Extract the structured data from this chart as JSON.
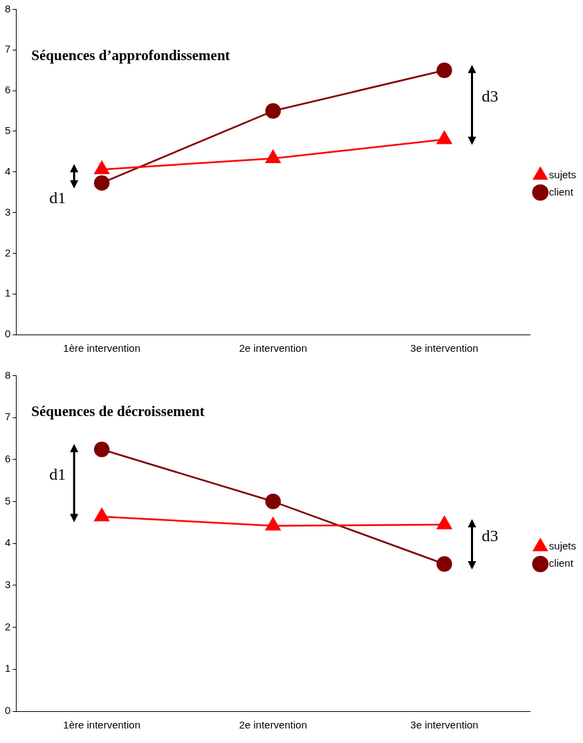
{
  "chart_data": [
    {
      "type": "line",
      "title": "Séquences d’approfondissement",
      "categories": [
        "1ère intervention",
        "2e intervention",
        "3e intervention"
      ],
      "series": [
        {
          "name": "sujets",
          "color": "#ff0000",
          "marker": "triangle",
          "values": [
            4.06,
            4.33,
            4.8
          ]
        },
        {
          "name": "client",
          "color": "#800000",
          "marker": "circle",
          "values": [
            3.73,
            5.5,
            6.5
          ]
        }
      ],
      "ylim": [
        0,
        8
      ],
      "yticks": [
        0,
        1,
        2,
        3,
        4,
        5,
        6,
        7,
        8
      ],
      "grid": false,
      "legend": "right",
      "annotations": [
        "d1",
        "d3"
      ]
    },
    {
      "type": "line",
      "title": "Séquences de décroissement",
      "categories": [
        "1ère intervention",
        "2e intervention",
        "3e intervention"
      ],
      "series": [
        {
          "name": "sujets",
          "color": "#ff0000",
          "marker": "triangle",
          "values": [
            4.64,
            4.42,
            4.45
          ]
        },
        {
          "name": "client",
          "color": "#800000",
          "marker": "circle",
          "values": [
            6.24,
            5.0,
            3.51
          ]
        }
      ],
      "ylim": [
        0,
        8
      ],
      "yticks": [
        0,
        1,
        2,
        3,
        4,
        5,
        6,
        7,
        8
      ],
      "grid": false,
      "legend": "right",
      "annotations": [
        "d1",
        "d3"
      ]
    }
  ]
}
